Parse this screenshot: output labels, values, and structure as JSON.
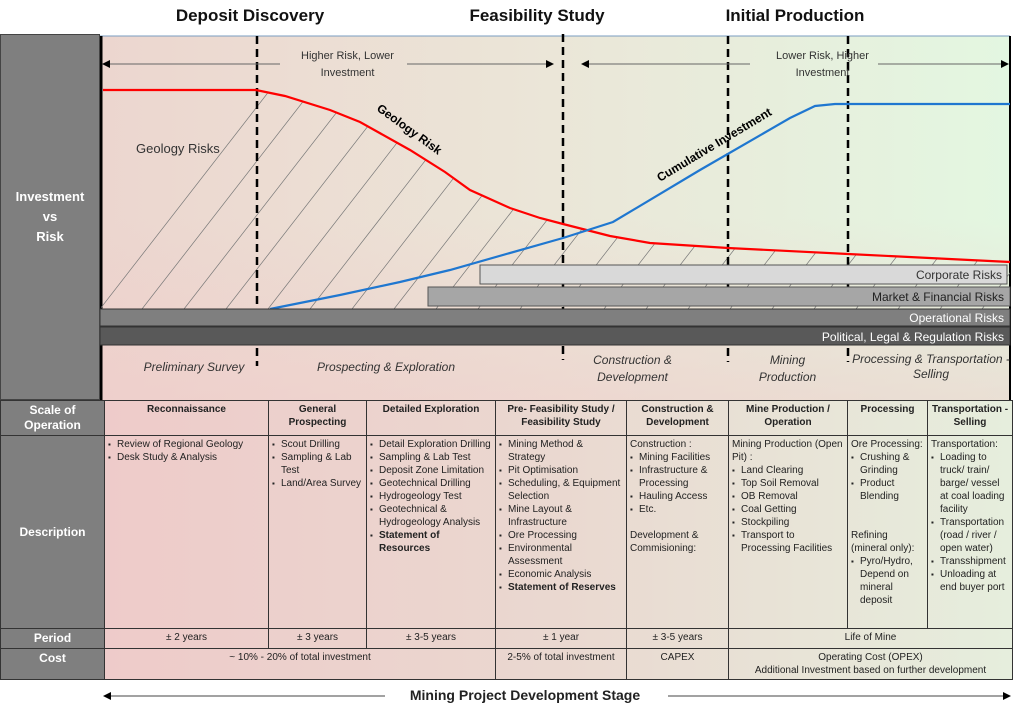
{
  "stages": [
    "Deposit Discovery",
    "Feasibility Study",
    "Initial Production"
  ],
  "side_label": "Investment\nvs\nRisk",
  "arrows": {
    "left": "Higher Risk, Lower Investment",
    "right": "Lower Risk, Higher Investment"
  },
  "curves": {
    "geology_risk": "Geology Risk",
    "cumulative_investment": "Cumulative Investment",
    "geology_risks_area": "Geology Risks"
  },
  "risk_bars": [
    "Corporate Risks",
    "Market & Financial Risks",
    "Operational Risks",
    "Political, Legal & Regulation Risks"
  ],
  "phases": [
    "Preliminary Survey",
    "Prospecting & Exploration",
    "Construction & Development",
    "Mining Production",
    "Processing & Transportation - Selling"
  ],
  "colors": {
    "geology_risk": "#ff0000",
    "cumulative_investment": "#1f77d0",
    "label_column": "#7f7f7f"
  },
  "table": {
    "row_labels": {
      "scale": "Scale of Operation",
      "description": "Description",
      "period": "Period",
      "cost": "Cost"
    },
    "columns": [
      {
        "title": "Reconnaissance",
        "items": [
          {
            "t": "Review of Regional Geology"
          },
          {
            "t": "Desk Study & Analysis"
          }
        ]
      },
      {
        "title": "General Prospecting",
        "items": [
          {
            "t": "Scout Drilling"
          },
          {
            "t": "Sampling & Lab Test"
          },
          {
            "t": "Land/Area Survey"
          }
        ]
      },
      {
        "title": "Detailed Exploration",
        "items": [
          {
            "t": "Detail Exploration Drilling"
          },
          {
            "t": "Sampling & Lab Test"
          },
          {
            "t": "Deposit Zone Limitation"
          },
          {
            "t": "Geotechnical Drilling"
          },
          {
            "t": "Hydrogeology Test"
          },
          {
            "t": "Geotechnical & Hydrogeology Analysis"
          },
          {
            "t": "Statement of Resources",
            "b": true
          }
        ]
      },
      {
        "title": "Pre- Feasibility Study / Feasibility Study",
        "items": [
          {
            "t": "Mining Method & Strategy"
          },
          {
            "t": "Pit Optimisation"
          },
          {
            "t": "Scheduling, & Equipment Selection"
          },
          {
            "t": "Mine Layout & Infrastructure"
          },
          {
            "t": "Ore Processing"
          },
          {
            "t": "Environmental Assessment"
          },
          {
            "t": "Economic Analysis"
          },
          {
            "t": "Statement of Reserves",
            "b": true
          }
        ]
      },
      {
        "title": "Construction & Development",
        "items": [
          {
            "n": "Construction :"
          },
          {
            "t": "Mining Facilities"
          },
          {
            "t": "Infrastructure & Processing"
          },
          {
            "t": "Hauling Access"
          },
          {
            "t": "Etc."
          },
          {
            "n": " "
          },
          {
            "n": "Development & Commisioning:"
          }
        ]
      },
      {
        "title": "Mine Production / Operation",
        "items": [
          {
            "n": "Mining Production (Open Pit) :"
          },
          {
            "t": "Land Clearing"
          },
          {
            "t": "Top Soil Removal"
          },
          {
            "t": "OB Removal"
          },
          {
            "t": "Coal Getting"
          },
          {
            "t": "Stockpiling"
          },
          {
            "t": "Transport to Processing Facilities"
          }
        ]
      },
      {
        "title": "Processing",
        "items": [
          {
            "n": "Ore Processing:"
          },
          {
            "t": "Crushing & Grinding"
          },
          {
            "t": "Product Blending"
          },
          {
            "n": " "
          },
          {
            "n": " "
          },
          {
            "n": "Refining (mineral only):"
          },
          {
            "t": "Pyro/Hydro, Depend on mineral deposit"
          }
        ]
      },
      {
        "title": "Transportation - Selling",
        "items": [
          {
            "n": "Transportation:"
          },
          {
            "t": "Loading to truck/ train/ barge/ vessel at coal loading facility"
          },
          {
            "t": "Transportation (road / river / open water)"
          },
          {
            "t": "Transshipment"
          },
          {
            "t": "Unloading at end buyer port"
          }
        ]
      }
    ],
    "period": [
      "± 2 years",
      "± 3 years",
      "± 3-5 years",
      "± 1 year",
      "± 3-5 years",
      "Life of Mine"
    ],
    "cost": [
      "~ 10% - 20% of total investment",
      "2-5% of total investment",
      "CAPEX",
      "Operating Cost (OPEX)",
      "Additional Investment based on further development"
    ]
  },
  "footer": "Mining Project Development Stage"
}
